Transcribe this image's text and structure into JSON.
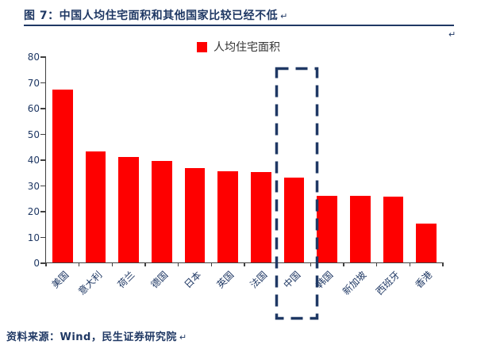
{
  "page": {
    "source": "资料来源：Wind，民生证券研究院",
    "paragraph_mark": "↵"
  },
  "colors": {
    "navy": "#1F3864",
    "axis": "#404040",
    "bar_red": "#FE0000",
    "background": "#FFFFFF"
  },
  "chart_data": {
    "type": "bar",
    "title": "图 7：中国人均住宅面积和其他国家比较已经不低",
    "xlabel": "",
    "ylabel": "",
    "legend_position": "top-center",
    "grid": false,
    "categories": [
      "美国",
      "意大利",
      "荷兰",
      "德国",
      "日本",
      "英国",
      "法国",
      "中国",
      "韩国",
      "新加坡",
      "西班牙",
      "香港"
    ],
    "series": [
      {
        "name": "人均住宅面积",
        "color": "#FE0000",
        "values": [
          67,
          43,
          41,
          39.5,
          36.5,
          35.5,
          35,
          33,
          26,
          26,
          25.5,
          15
        ]
      }
    ],
    "ylim": [
      0,
      80
    ],
    "yticks": [
      0,
      10,
      20,
      30,
      40,
      50,
      60,
      70,
      80
    ],
    "highlight": {
      "category": "中国",
      "style": "dashed-navy-rectangle"
    }
  }
}
